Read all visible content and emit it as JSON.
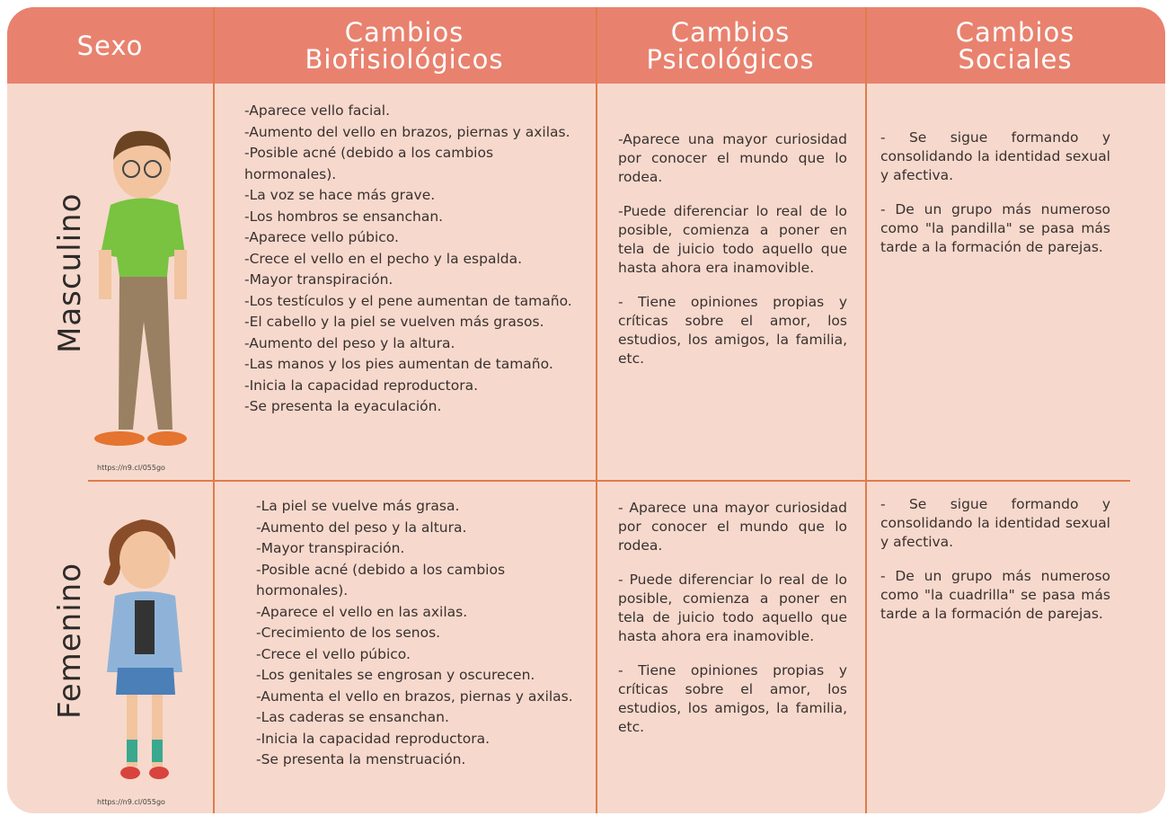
{
  "header": {
    "columns": [
      [
        "Sexo"
      ],
      [
        "Cambios",
        "Biofisiológicos"
      ],
      [
        "Cambios",
        "Psicológicos"
      ],
      [
        "Cambios",
        "Sociales"
      ]
    ]
  },
  "rows": [
    {
      "sex": "Masculino",
      "source": "https://n9.cl/055go",
      "biofisiologicos": [
        "-Aparece vello facial.",
        "-Aumento del vello en brazos, piernas y axilas.",
        "-Posible acné (debido a los cambios hormonales).",
        "-La voz se hace más grave.",
        "-Los hombros se ensanchan.",
        "-Aparece vello púbico.",
        "-Crece el vello en el pecho y la espalda.",
        "-Mayor transpiración.",
        "-Los testículos y el pene aumentan de tamaño.",
        "-El cabello y la piel se vuelven más grasos.",
        "-Aumento del peso y la altura.",
        "-Las manos y los pies aumentan de tamaño.",
        "-Inicia la capacidad reproductora.",
        "-Se presenta la eyaculación."
      ],
      "psicologicos": [
        "-Aparece una mayor curiosidad por conocer el mundo que lo rodea.",
        "-Puede diferenciar lo real de lo posible, comienza a poner en tela de juicio todo aquello que hasta ahora era inamovible.",
        "- Tiene opiniones propias y críticas sobre el amor, los estudios, los amigos, la familia, etc."
      ],
      "sociales": [
        "- Se sigue formando y consolidando la identidad sexual y afectiva.",
        "- De un grupo más numeroso como \"la pandilla\" se pasa más tarde a la formación de parejas."
      ]
    },
    {
      "sex": "Femenino",
      "source": "https://n9.cl/055go",
      "biofisiologicos": [
        "-La piel se vuelve más grasa.",
        "-Aumento del peso y la altura.",
        "-Mayor transpiración.",
        "-Posible acné (debido a los cambios hormonales).",
        "-Aparece el vello en las axilas.",
        "-Crecimiento de los senos.",
        "-Crece el vello púbico.",
        "-Los genitales se engrosan y oscurecen.",
        "-Aumenta el vello en brazos, piernas y axilas.",
        "-Las caderas se ensanchan.",
        "-Inicia la capacidad reproductora.",
        "-Se presenta la menstruación."
      ],
      "psicologicos": [
        "- Aparece una mayor curiosidad por conocer el mundo que lo rodea.",
        "- Puede diferenciar lo real de lo posible, comienza a poner en tela de juicio todo aquello que hasta ahora era inamovible.",
        "- Tiene opiniones propias y críticas sobre el amor, los estudios, los amigos, la familia, etc."
      ],
      "sociales": [
        "- Se sigue formando y consolidando la identidad sexual y afectiva.",
        "- De un grupo más numeroso como \"la cuadrilla\" se pasa más tarde a la formación de parejas."
      ]
    }
  ]
}
